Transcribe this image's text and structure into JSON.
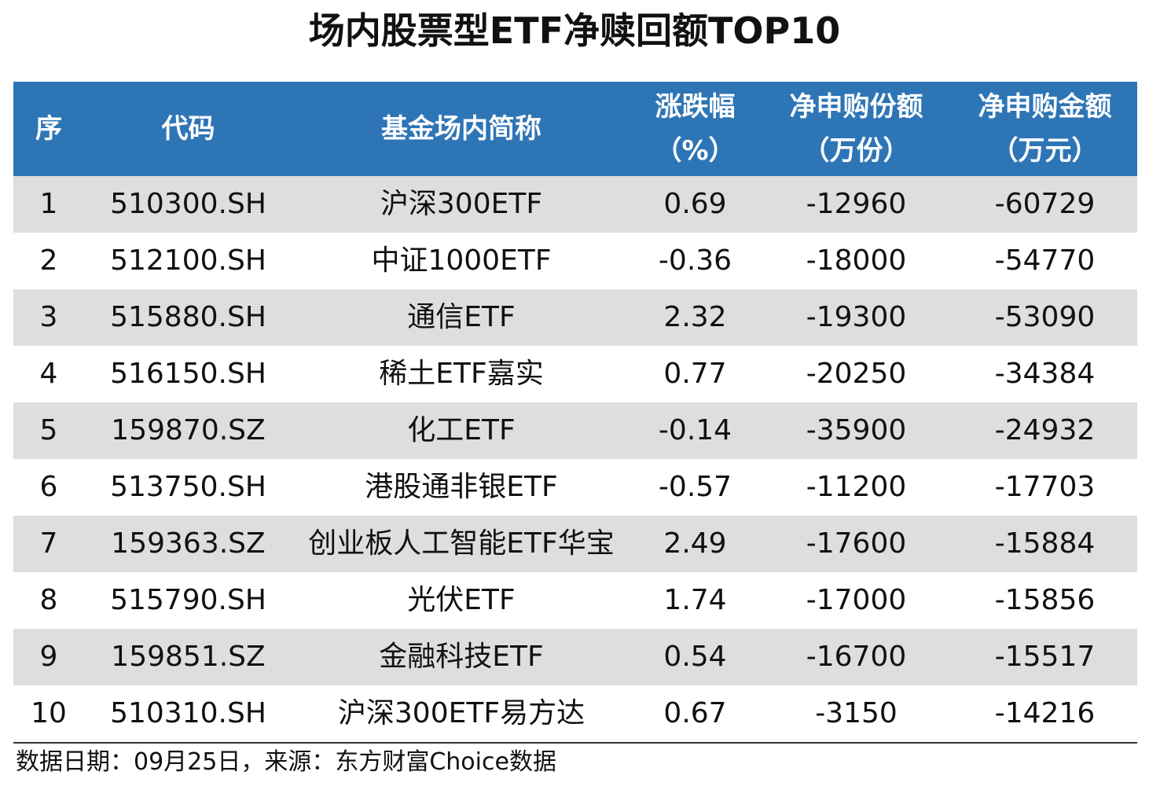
{
  "title": "场内股票型ETF净赎回额TOP10",
  "chart_data": {
    "type": "table",
    "columns": [
      "序",
      "代码",
      "基金场内简称",
      "涨跌幅（%）",
      "净申购份额（万份）",
      "净申购金额（万元）"
    ],
    "headers": [
      {
        "line1": "序",
        "line2": ""
      },
      {
        "line1": "代码",
        "line2": ""
      },
      {
        "line1": "基金场内简称",
        "line2": ""
      },
      {
        "line1": "涨跌幅",
        "line2": "（%）"
      },
      {
        "line1": "净申购份额",
        "line2": "（万份）"
      },
      {
        "line1": "净申购金额",
        "line2": "（万元）"
      }
    ],
    "rows": [
      [
        "1",
        "510300.SH",
        "沪深300ETF",
        "0.69",
        "-12960",
        "-60729"
      ],
      [
        "2",
        "512100.SH",
        "中证1000ETF",
        "-0.36",
        "-18000",
        "-54770"
      ],
      [
        "3",
        "515880.SH",
        "通信ETF",
        "2.32",
        "-19300",
        "-53090"
      ],
      [
        "4",
        "516150.SH",
        "稀土ETF嘉实",
        "0.77",
        "-20250",
        "-34384"
      ],
      [
        "5",
        "159870.SZ",
        "化工ETF",
        "-0.14",
        "-35900",
        "-24932"
      ],
      [
        "6",
        "513750.SH",
        "港股通非银ETF",
        "-0.57",
        "-11200",
        "-17703"
      ],
      [
        "7",
        "159363.SZ",
        "创业板人工智能ETF华宝",
        "2.49",
        "-17600",
        "-15884"
      ],
      [
        "8",
        "515790.SH",
        "光伏ETF",
        "1.74",
        "-17000",
        "-15856"
      ],
      [
        "9",
        "159851.SZ",
        "金融科技ETF",
        "0.54",
        "-16700",
        "-15517"
      ],
      [
        "10",
        "510310.SH",
        "沪深300ETF易方达",
        "0.67",
        "-3150",
        "-14216"
      ]
    ]
  },
  "footer": "数据日期：09月25日，来源：东方财富Choice数据",
  "colors": {
    "header_bg": "#2e75b6",
    "header_text": "#ffffff",
    "stripe_bg": "#dedede"
  }
}
